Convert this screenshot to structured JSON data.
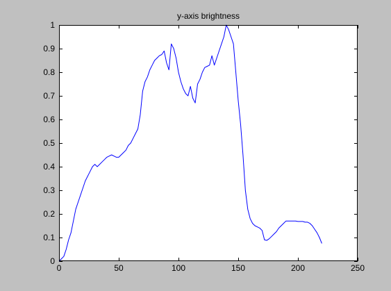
{
  "chart_data": {
    "type": "line",
    "title": "y-axis brightness",
    "xlabel": "",
    "ylabel": "",
    "xlim": [
      0,
      250
    ],
    "ylim": [
      0,
      1
    ],
    "grid": false,
    "x_ticks": [
      0,
      50,
      100,
      150,
      200,
      250
    ],
    "y_ticks": [
      0,
      0.1,
      0.2,
      0.3,
      0.4,
      0.5,
      0.6,
      0.7,
      0.8,
      0.9,
      1
    ],
    "x_tick_labels": [
      "0",
      "50",
      "100",
      "150",
      "200",
      "250"
    ],
    "y_tick_labels": [
      "0",
      "0.1",
      "0.2",
      "0.3",
      "0.4",
      "0.5",
      "0.6",
      "0.7",
      "0.8",
      "0.9",
      "1"
    ],
    "series": [
      {
        "color": "#0000ff",
        "x": [
          0,
          2,
          4,
          6,
          8,
          10,
          12,
          14,
          16,
          18,
          20,
          22,
          24,
          26,
          28,
          30,
          32,
          34,
          36,
          38,
          40,
          42,
          44,
          46,
          48,
          50,
          52,
          54,
          56,
          58,
          60,
          62,
          64,
          66,
          68,
          70,
          72,
          74,
          76,
          78,
          80,
          82,
          84,
          86,
          88,
          90,
          92,
          94,
          96,
          98,
          100,
          102,
          104,
          106,
          108,
          110,
          112,
          114,
          116,
          118,
          120,
          122,
          124,
          126,
          128,
          130,
          132,
          134,
          136,
          138,
          140,
          142,
          144,
          146,
          148,
          150,
          152,
          154,
          156,
          158,
          160,
          162,
          164,
          166,
          168,
          170,
          172,
          174,
          176,
          178,
          180,
          182,
          184,
          186,
          188,
          190,
          192,
          194,
          196,
          198,
          200,
          202,
          204,
          206,
          208,
          210,
          212,
          214,
          216,
          218,
          220
        ],
        "y": [
          0.0,
          0.01,
          0.02,
          0.05,
          0.09,
          0.12,
          0.17,
          0.22,
          0.25,
          0.28,
          0.31,
          0.34,
          0.36,
          0.38,
          0.4,
          0.41,
          0.4,
          0.41,
          0.42,
          0.43,
          0.44,
          0.445,
          0.45,
          0.445,
          0.44,
          0.44,
          0.45,
          0.46,
          0.47,
          0.49,
          0.5,
          0.52,
          0.54,
          0.56,
          0.62,
          0.72,
          0.76,
          0.78,
          0.81,
          0.83,
          0.85,
          0.86,
          0.87,
          0.875,
          0.89,
          0.84,
          0.81,
          0.92,
          0.9,
          0.86,
          0.8,
          0.76,
          0.73,
          0.71,
          0.7,
          0.74,
          0.69,
          0.67,
          0.75,
          0.77,
          0.8,
          0.82,
          0.825,
          0.83,
          0.87,
          0.83,
          0.86,
          0.89,
          0.92,
          0.95,
          1.0,
          0.98,
          0.95,
          0.92,
          0.8,
          0.68,
          0.58,
          0.45,
          0.3,
          0.22,
          0.18,
          0.16,
          0.15,
          0.145,
          0.14,
          0.13,
          0.09,
          0.088,
          0.095,
          0.105,
          0.115,
          0.125,
          0.14,
          0.15,
          0.16,
          0.17,
          0.17,
          0.17,
          0.17,
          0.17,
          0.168,
          0.168,
          0.168,
          0.165,
          0.165,
          0.16,
          0.15,
          0.135,
          0.12,
          0.1,
          0.075
        ]
      }
    ]
  }
}
